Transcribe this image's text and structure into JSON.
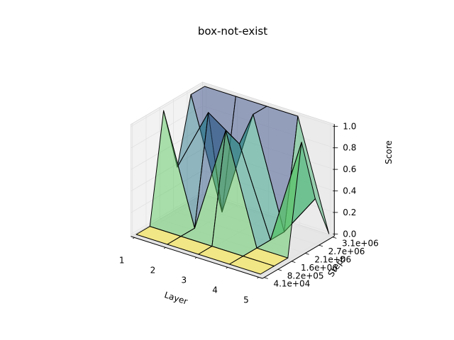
{
  "chart_data": {
    "type": "surface3d",
    "title": "box-not-exist",
    "xlabel": "Layer",
    "ylabel": "Steps",
    "zlabel": "Score",
    "x_ticks": [
      "1",
      "2",
      "3",
      "4",
      "5"
    ],
    "y_ticks": [
      "4.1e+04",
      "8.2e+05",
      "1.6e+06",
      "2.1e+06",
      "2.7e+06",
      "3.1e+06"
    ],
    "z_ticks": [
      "0.0",
      "0.2",
      "0.4",
      "0.6",
      "0.8",
      "1.0"
    ],
    "zlim": [
      0,
      1
    ],
    "colormap": "viridis",
    "surface_alpha": 0.5,
    "grid": true,
    "z": [
      [
        0.0,
        0.0,
        0.0,
        0.0,
        0.0
      ],
      [
        0.0,
        0.0,
        0.0,
        0.0,
        0.0
      ],
      [
        1.0,
        0.0,
        1.0,
        0.0,
        0.0
      ],
      [
        0.4,
        1.0,
        0.8,
        0.0,
        1.0
      ],
      [
        1.0,
        0.0,
        1.0,
        0.0,
        0.4
      ],
      [
        1.0,
        1.0,
        1.0,
        1.0,
        0.0
      ]
    ]
  }
}
